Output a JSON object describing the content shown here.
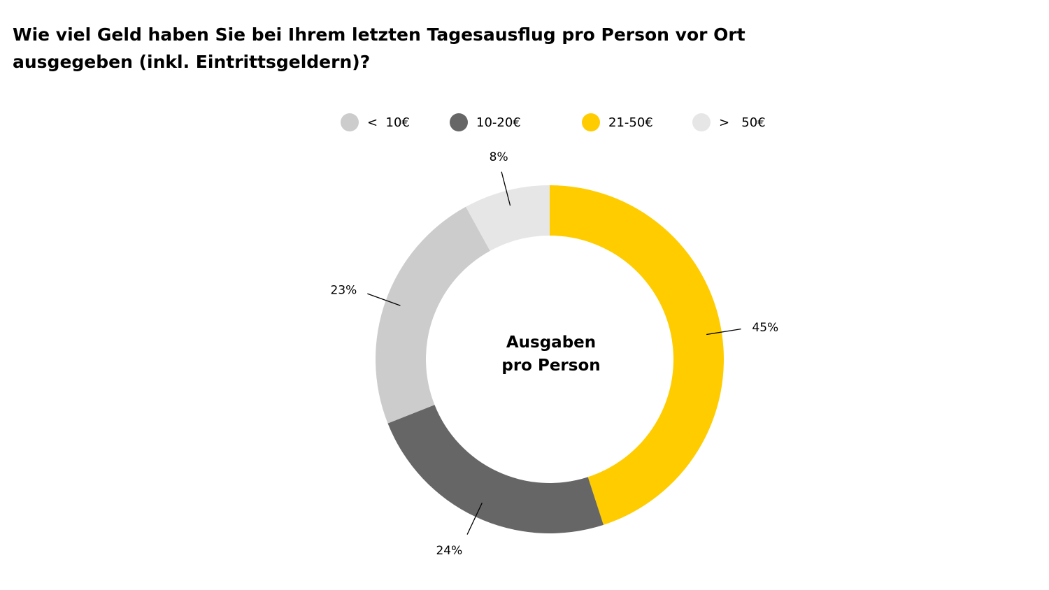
{
  "title": "Wie viel Geld haben Sie bei Ihrem letzten Tagesausflug pro Person vor Ort ausgegeben (inkl. Eintrittsgeldern)?",
  "center_label_line1": "Ausgaben",
  "center_label_line2": "pro Person",
  "legend": [
    {
      "label": "<  10€",
      "color": "#cccccc"
    },
    {
      "label": "10-20€",
      "color": "#666666"
    },
    {
      "label": "21-50€",
      "color": "#ffcc00"
    },
    {
      "label": ">   50€",
      "color": "#e6e6e6"
    }
  ],
  "chart_data": {
    "type": "pie",
    "variant": "donut",
    "title": "Wie viel Geld haben Sie bei Ihrem letzten Tagesausflug pro Person vor Ort ausgegeben (inkl. Eintrittsgeldern)?",
    "center_text": "Ausgaben pro Person",
    "legend_position": "top",
    "slices": [
      {
        "label": "21-50€",
        "value": 45,
        "data_label": "45%",
        "color": "#ffcc00"
      },
      {
        "label": "10-20€",
        "value": 24,
        "data_label": "24%",
        "color": "#666666"
      },
      {
        "label": "< 10€",
        "value": 23,
        "data_label": "23%",
        "color": "#cccccc"
      },
      {
        "label": "> 50€",
        "value": 8,
        "data_label": "8%",
        "color": "#e6e6e6"
      }
    ]
  }
}
